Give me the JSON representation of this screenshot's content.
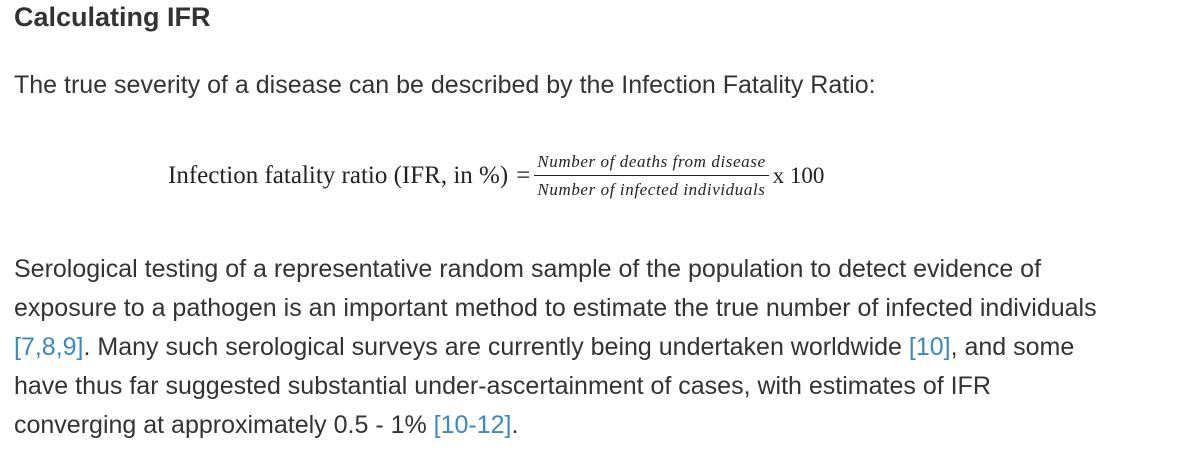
{
  "section": {
    "title": "Calculating IFR",
    "intro": "The true severity of a disease can be described by the Infection Fatality Ratio:"
  },
  "formula": {
    "lhs": "Infection fatality ratio (IFR, in %)",
    "equals": "=",
    "numerator": "Number of deaths from disease",
    "denominator": "Number of infected individuals",
    "multiplier": "x 100"
  },
  "paragraph": {
    "line1": "Serological testing of a representative random sample of the population to detect evidence of",
    "line2": "exposure to a pathogen is an important method to estimate the true number of infected individuals",
    "cite1": "[7,8,9]",
    "line3_mid": ". Many such serological surveys are currently being undertaken worldwide ",
    "cite2": "[10]",
    "line3_end": ", and some",
    "line4": "have thus far suggested substantial under-ascertainment of cases, with estimates of IFR",
    "line5_start": "converging at approximately 0.5 - 1% ",
    "cite3": "[10-12]",
    "line5_end": "."
  },
  "colors": {
    "text": "#333333",
    "link": "#3a88c6"
  }
}
